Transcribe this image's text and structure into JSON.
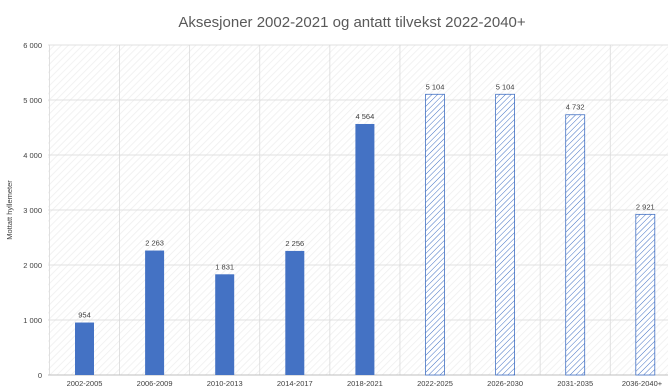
{
  "chart_data": {
    "type": "bar",
    "title": "Aksesjoner 2002-2021 og antatt tilvekst 2022-2040+",
    "ylabel": "Mottatt hyllemeter",
    "xlabel": "",
    "ylim": [
      0,
      6000
    ],
    "yticks": [
      0,
      1000,
      2000,
      3000,
      4000,
      5000,
      6000
    ],
    "ytick_labels": [
      "0",
      "1 000",
      "2 000",
      "3 000",
      "4 000",
      "5 000",
      "6 000"
    ],
    "categories": [
      "2002-2005",
      "2006-2009",
      "2010-2013",
      "2014-2017",
      "2018-2021",
      "2022-2025",
      "2026-2030",
      "2031-2035",
      "2036-2040+"
    ],
    "values": [
      954,
      2263,
      1831,
      2256,
      4564,
      5104,
      5104,
      4732,
      2921
    ],
    "value_labels": [
      "954",
      "2 263",
      "1 831",
      "2 256",
      "4 564",
      "5 104",
      "5 104",
      "4 732",
      "2 921"
    ],
    "projected": [
      false,
      false,
      false,
      false,
      false,
      true,
      true,
      true,
      true
    ],
    "grid": true,
    "colors": {
      "actual": "#4472c4",
      "projected_stroke": "#4472c4",
      "grid": "#d9d9d9",
      "background_hatch": "#efefef"
    }
  }
}
